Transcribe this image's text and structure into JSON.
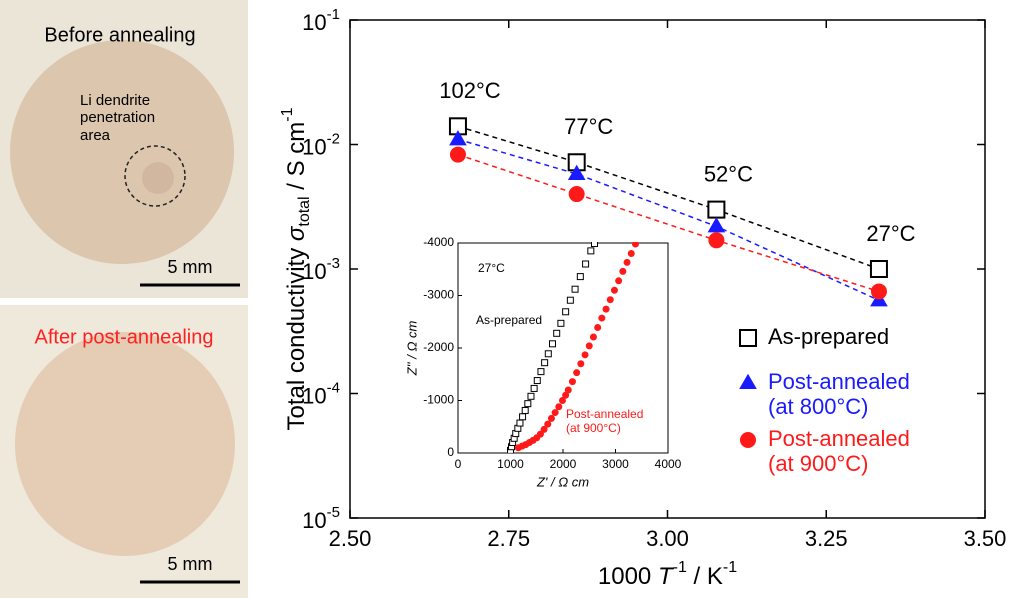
{
  "photos": [
    {
      "title": "Before annealing",
      "note": "Li dendrite penetration area",
      "scale": "5 mm"
    },
    {
      "title": "After post-annealing",
      "scale": "5 mm"
    }
  ],
  "chart_data": [
    {
      "type": "scatter",
      "xlabel": {
        "text": "1000 ",
        "symbol": "T",
        "symbol_exp": "-1",
        "unit": " / K",
        "unit_exp": "-1"
      },
      "ylabel": {
        "text": "Total conductivity ",
        "symbol": "σ",
        "subscript": "total",
        "unit": " / S cm",
        "unit_exp": "-1"
      },
      "xlim": [
        2.5,
        3.5
      ],
      "xticks": [
        {
          "value": 2.5,
          "label": "2.50"
        },
        {
          "value": 2.75,
          "label": "2.75"
        },
        {
          "value": 3.0,
          "label": "3.00"
        },
        {
          "value": 3.25,
          "label": "3.25"
        },
        {
          "value": 3.5,
          "label": "3.50"
        }
      ],
      "ylim": [
        1e-05,
        0.1
      ],
      "log_y": true,
      "yticks": [
        {
          "value": 1e-05,
          "label": "10",
          "exponent": "-5"
        },
        {
          "value": 0.0001,
          "label": "10",
          "exponent": "-4"
        },
        {
          "value": 0.001,
          "label": "10",
          "exponent": "-3"
        },
        {
          "value": 0.01,
          "label": "10",
          "exponent": "-2"
        },
        {
          "value": 0.1,
          "label": "10",
          "exponent": "-1"
        }
      ],
      "point_labels": [
        "102°C",
        "77°C",
        "52°C",
        "27°C"
      ],
      "x": [
        2.67,
        2.857,
        3.077,
        3.333
      ],
      "dashed_fit": true,
      "series": [
        {
          "name": "As-prepared",
          "color": "#000000",
          "marker": "square-open",
          "values": [
            0.014,
            0.0072,
            0.003,
            0.001
          ]
        },
        {
          "name": "Post-annealed (at 800°C)",
          "color": "#1a1aff",
          "marker": "triangle",
          "values": [
            0.011,
            0.0058,
            0.0022,
            0.00056
          ]
        },
        {
          "name": "Post-annealed (at 900°C)",
          "color": "#ff1a1a",
          "marker": "circle",
          "values": [
            0.0083,
            0.004,
            0.0017,
            0.00066
          ]
        }
      ]
    },
    {
      "type": "scatter",
      "xlabel": "Z' / Ω cm",
      "ylabel": "Z'' / Ω cm",
      "annotation": "27°C",
      "xlim": [
        0,
        4000
      ],
      "xticks": [
        0,
        1000,
        2000,
        3000,
        4000
      ],
      "ylim": [
        0,
        -4000
      ],
      "yticks": [
        0,
        -1000,
        -2000,
        -3000,
        -4000
      ],
      "series": [
        {
          "name": "As-prepared",
          "color": "#000000",
          "marker": "square-open",
          "x": [
            1000,
            1020,
            1040,
            1070,
            1100,
            1140,
            1180,
            1230,
            1280,
            1330,
            1390,
            1450,
            1510,
            1580,
            1650,
            1720,
            1800,
            1880,
            1960,
            2050,
            2140,
            2230,
            2330,
            2430,
            2530,
            2600
          ],
          "values": [
            -50,
            -120,
            -200,
            -280,
            -370,
            -470,
            -570,
            -690,
            -810,
            -940,
            -1080,
            -1230,
            -1380,
            -1550,
            -1720,
            -1890,
            -2080,
            -2280,
            -2470,
            -2690,
            -2910,
            -3120,
            -3360,
            -3600,
            -3850,
            -3990
          ]
        },
        {
          "name": "Post-annealed (at 900°C)",
          "color": "#ff1a1a",
          "marker": "circle",
          "x": [
            1150,
            1220,
            1290,
            1360,
            1430,
            1500,
            1570,
            1640,
            1710,
            1780,
            1850,
            1920,
            1990,
            2050,
            2100,
            2180,
            2260,
            2340,
            2420,
            2500,
            2580,
            2660,
            2740,
            2820,
            2900,
            2980,
            3060,
            3140,
            3220,
            3300,
            3380
          ],
          "values": [
            -100,
            -130,
            -160,
            -200,
            -240,
            -290,
            -360,
            -450,
            -550,
            -660,
            -770,
            -880,
            -1000,
            -1100,
            -1200,
            -1360,
            -1530,
            -1700,
            -1870,
            -2040,
            -2210,
            -2390,
            -2570,
            -2740,
            -2920,
            -3100,
            -3280,
            -3460,
            -3630,
            -3800,
            -3980
          ]
        }
      ]
    }
  ]
}
